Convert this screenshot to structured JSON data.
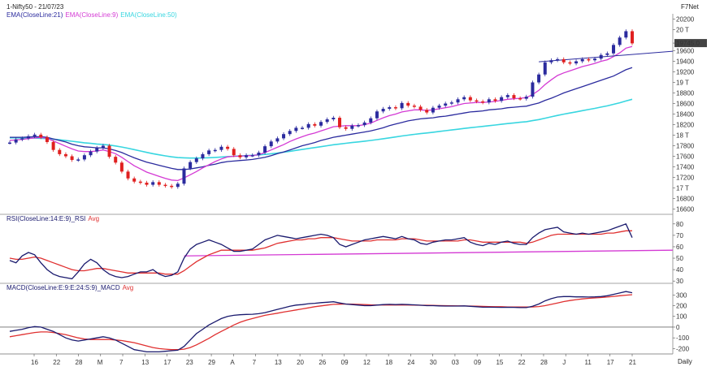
{
  "header": {
    "instrument": "1-Nifty50 - 21/07/23",
    "provider": "F7Net",
    "price_legend": [
      {
        "label": "EMA(CloseLine:21)",
        "color": "#2b2b9e"
      },
      {
        "label": "EMA(CloseLine:9)",
        "color": "#d43ad4"
      },
      {
        "label": "EMA(CloseLine:50)",
        "color": "#38d6e0"
      }
    ],
    "rsi_legend": [
      {
        "label": "RSI(CloseLine:14:E:9)_RSI",
        "color": "#1a1a6e"
      },
      {
        "label": "Avg",
        "color": "#e03030"
      }
    ],
    "macd_legend": [
      {
        "label": "MACD(CloseLine:E:9:E:24:S:9)_MACD",
        "color": "#1a1a6e"
      },
      {
        "label": "Avg",
        "color": "#e03030"
      }
    ],
    "period": "Daily",
    "last_price": "19745.0"
  },
  "colors": {
    "up": "#2b2b9e",
    "down": "#e02020",
    "ema21": "#2b2b9e",
    "ema9": "#d43ad4",
    "ema50": "#38d6e0",
    "rsi": "#1a1a6e",
    "avg": "#e03030",
    "trend": "#d43ad4"
  },
  "chart_data": [
    {
      "type": "candlestick",
      "title": "1-Nifty50 - 21/07/23",
      "ylim": [
        16500,
        20300
      ],
      "y_ticks": [
        "20200",
        "20 T",
        "19745.0",
        "19600",
        "19400",
        "19200",
        "19 T",
        "18800",
        "18600",
        "18400",
        "18200",
        "18 T",
        "17800",
        "17600",
        "17400",
        "17200",
        "17 T",
        "16800",
        "16600"
      ],
      "y_tick_values": [
        20200,
        20000,
        19745,
        19600,
        19400,
        19200,
        19000,
        18800,
        18600,
        18400,
        18200,
        18000,
        17800,
        17600,
        17400,
        17200,
        17000,
        16800,
        16600
      ],
      "x_tick_labels": [
        "16",
        "22",
        "28",
        "M",
        "7",
        "13",
        "17",
        "23",
        "29",
        "A",
        "7",
        "13",
        "20",
        "26",
        "09",
        "12",
        "18",
        "24",
        "30",
        "03",
        "09",
        "15",
        "22",
        "28",
        "J",
        "11",
        "17",
        "21"
      ],
      "close": [
        17860,
        17920,
        17940,
        17980,
        18010,
        17960,
        17870,
        17720,
        17640,
        17600,
        17530,
        17540,
        17620,
        17690,
        17760,
        17800,
        17590,
        17480,
        17310,
        17180,
        17120,
        17100,
        17060,
        17110,
        17060,
        17040,
        17020,
        17080,
        17370,
        17490,
        17560,
        17640,
        17710,
        17720,
        17780,
        17740,
        17620,
        17580,
        17620,
        17620,
        17670,
        17790,
        17880,
        17940,
        18020,
        18080,
        18140,
        18140,
        18210,
        18180,
        18250,
        18300,
        18330,
        18150,
        18120,
        18180,
        18190,
        18240,
        18320,
        18450,
        18500,
        18530,
        18510,
        18610,
        18560,
        18540,
        18480,
        18430,
        18520,
        18560,
        18600,
        18620,
        18680,
        18720,
        18660,
        18640,
        18620,
        18680,
        18650,
        18720,
        18760,
        18700,
        18690,
        18730,
        19000,
        19150,
        19380,
        19420,
        19440,
        19380,
        19360,
        19400,
        19440,
        19420,
        19450,
        19520,
        19550,
        19710,
        19850,
        19970,
        19740
      ],
      "ema9": [
        17900,
        17910,
        17920,
        17935,
        17950,
        17955,
        17940,
        17890,
        17840,
        17790,
        17740,
        17700,
        17690,
        17690,
        17700,
        17720,
        17690,
        17650,
        17580,
        17500,
        17420,
        17360,
        17300,
        17260,
        17220,
        17180,
        17150,
        17140,
        17190,
        17250,
        17310,
        17380,
        17440,
        17500,
        17550,
        17590,
        17600,
        17600,
        17610,
        17615,
        17630,
        17670,
        17720,
        17770,
        17820,
        17880,
        17930,
        17970,
        18010,
        18040,
        18080,
        18120,
        18160,
        18170,
        18180,
        18180,
        18180,
        18200,
        18230,
        18280,
        18330,
        18370,
        18400,
        18440,
        18460,
        18480,
        18480,
        18470,
        18480,
        18500,
        18520,
        18540,
        18570,
        18600,
        18610,
        18620,
        18620,
        18630,
        18640,
        18660,
        18680,
        18690,
        18700,
        18710,
        18770,
        18850,
        18960,
        19050,
        19130,
        19180,
        19220,
        19260,
        19300,
        19330,
        19360,
        19400,
        19430,
        19490,
        19560,
        19650,
        19680
      ],
      "ema21": [
        17960,
        17960,
        17960,
        17965,
        17970,
        17970,
        17960,
        17930,
        17900,
        17870,
        17830,
        17800,
        17780,
        17770,
        17760,
        17760,
        17740,
        17710,
        17670,
        17620,
        17570,
        17530,
        17490,
        17460,
        17430,
        17400,
        17370,
        17350,
        17350,
        17360,
        17380,
        17400,
        17430,
        17450,
        17480,
        17500,
        17510,
        17520,
        17530,
        17540,
        17560,
        17580,
        17610,
        17650,
        17680,
        17720,
        17760,
        17800,
        17830,
        17860,
        17900,
        17930,
        17960,
        17980,
        18000,
        18020,
        18040,
        18060,
        18080,
        18110,
        18140,
        18180,
        18210,
        18240,
        18270,
        18290,
        18310,
        18320,
        18330,
        18350,
        18360,
        18380,
        18400,
        18420,
        18440,
        18450,
        18460,
        18480,
        18490,
        18500,
        18520,
        18530,
        18540,
        18550,
        18580,
        18610,
        18660,
        18700,
        18750,
        18800,
        18840,
        18880,
        18920,
        18960,
        19000,
        19040,
        19080,
        19120,
        19180,
        19240,
        19280
      ],
      "ema50": [
        17950,
        17950,
        17948,
        17946,
        17944,
        17940,
        17935,
        17925,
        17912,
        17898,
        17884,
        17870,
        17856,
        17844,
        17833,
        17824,
        17812,
        17796,
        17776,
        17752,
        17726,
        17700,
        17674,
        17650,
        17628,
        17608,
        17590,
        17576,
        17570,
        17566,
        17566,
        17568,
        17572,
        17578,
        17586,
        17594,
        17600,
        17606,
        17612,
        17618,
        17626,
        17636,
        17648,
        17662,
        17678,
        17694,
        17712,
        17730,
        17748,
        17764,
        17782,
        17800,
        17818,
        17832,
        17846,
        17860,
        17872,
        17886,
        17900,
        17916,
        17932,
        17950,
        17966,
        17984,
        18000,
        18016,
        18030,
        18042,
        18056,
        18070,
        18084,
        18098,
        18112,
        18128,
        18142,
        18154,
        18166,
        18180,
        18192,
        18206,
        18220,
        18232,
        18244,
        18256,
        18276,
        18296,
        18322,
        18348,
        18374,
        18398,
        18420,
        18442,
        18464,
        18486,
        18508,
        18532,
        18556,
        18584,
        18614,
        18648,
        18680
      ],
      "trendline": {
        "start": 19390,
        "end": 19590
      }
    },
    {
      "type": "line",
      "title": "RSI(CloseLine:14:E:9)_RSI",
      "ylim": [
        28,
        82
      ],
      "y_ticks": [
        "80",
        "70",
        "60",
        "50",
        "40",
        "30"
      ],
      "y_tick_values": [
        80,
        70,
        60,
        50,
        40,
        30
      ],
      "series": [
        {
          "name": "RSI(CloseLine:14:E:9)_RSI",
          "values": [
            48,
            46,
            52,
            55,
            53,
            46,
            40,
            36,
            34,
            33,
            32,
            38,
            45,
            49,
            46,
            40,
            36,
            34,
            33,
            34,
            36,
            38,
            38,
            40,
            36,
            34,
            35,
            38,
            50,
            58,
            62,
            64,
            66,
            64,
            62,
            59,
            56,
            56,
            57,
            58,
            62,
            66,
            68,
            70,
            69,
            68,
            67,
            68,
            69,
            70,
            71,
            70,
            68,
            62,
            60,
            62,
            64,
            66,
            67,
            68,
            69,
            68,
            67,
            69,
            67,
            66,
            63,
            62,
            64,
            65,
            66,
            66,
            67,
            68,
            64,
            62,
            61,
            63,
            62,
            64,
            65,
            63,
            62,
            62,
            68,
            72,
            75,
            76,
            77,
            73,
            72,
            71,
            72,
            71,
            72,
            73,
            74,
            76,
            78,
            80,
            68
          ]
        },
        {
          "name": "Avg",
          "values": [
            50,
            49,
            49,
            50,
            51,
            50,
            48,
            46,
            44,
            42,
            40,
            39,
            39,
            40,
            41,
            41,
            40,
            39,
            38,
            37,
            37,
            37,
            37,
            37,
            37,
            36,
            36,
            36,
            39,
            43,
            47,
            50,
            53,
            55,
            57,
            57,
            57,
            57,
            57,
            57,
            58,
            59,
            61,
            63,
            64,
            65,
            66,
            66,
            67,
            67,
            68,
            68,
            68,
            67,
            66,
            65,
            65,
            65,
            65,
            66,
            66,
            66,
            66,
            67,
            67,
            67,
            66,
            65,
            65,
            65,
            65,
            65,
            65,
            66,
            66,
            65,
            64,
            64,
            64,
            64,
            64,
            64,
            64,
            63,
            64,
            66,
            68,
            70,
            71,
            71,
            71,
            71,
            71,
            71,
            71,
            71,
            72,
            72,
            73,
            74,
            74
          ]
        }
      ],
      "trendline": {
        "start": 52,
        "end": 57
      }
    },
    {
      "type": "line",
      "title": "MACD(CloseLine:E:9:E:24:S:9)_MACD",
      "ylim": [
        -250,
        340
      ],
      "y_ticks": [
        "300",
        "200",
        "100",
        "0",
        "-100",
        "-200"
      ],
      "y_tick_values": [
        300,
        200,
        100,
        0,
        -100,
        -200
      ],
      "series": [
        {
          "name": "MACD(CloseLine:E:9:E:24:S:9)_MACD",
          "values": [
            -40,
            -30,
            -20,
            -5,
            5,
            0,
            -20,
            -40,
            -70,
            -100,
            -120,
            -130,
            -120,
            -110,
            -100,
            -90,
            -100,
            -120,
            -150,
            -180,
            -210,
            -220,
            -230,
            -230,
            -230,
            -225,
            -220,
            -215,
            -180,
            -120,
            -60,
            -20,
            20,
            50,
            80,
            100,
            110,
            115,
            118,
            120,
            125,
            135,
            150,
            165,
            180,
            195,
            205,
            210,
            218,
            222,
            228,
            232,
            236,
            225,
            215,
            210,
            205,
            200,
            200,
            205,
            210,
            212,
            210,
            212,
            210,
            208,
            204,
            200,
            200,
            198,
            196,
            196,
            196,
            198,
            194,
            190,
            186,
            186,
            185,
            184,
            185,
            184,
            182,
            182,
            195,
            215,
            245,
            265,
            280,
            285,
            285,
            282,
            282,
            280,
            282,
            285,
            292,
            305,
            318,
            332,
            320
          ]
        },
        {
          "name": "Avg",
          "values": [
            -90,
            -80,
            -70,
            -60,
            -50,
            -45,
            -45,
            -50,
            -60,
            -70,
            -85,
            -100,
            -110,
            -115,
            -115,
            -115,
            -115,
            -120,
            -125,
            -135,
            -145,
            -160,
            -175,
            -190,
            -200,
            -205,
            -210,
            -210,
            -205,
            -190,
            -165,
            -135,
            -105,
            -70,
            -40,
            -10,
            20,
            45,
            65,
            80,
            95,
            110,
            120,
            130,
            140,
            150,
            160,
            170,
            180,
            190,
            198,
            205,
            212,
            214,
            215,
            214,
            212,
            210,
            208,
            207,
            206,
            206,
            206,
            206,
            206,
            205,
            204,
            204,
            202,
            201,
            200,
            199,
            198,
            197,
            196,
            195,
            193,
            192,
            190,
            190,
            188,
            188,
            188,
            187,
            188,
            192,
            200,
            212,
            225,
            238,
            248,
            256,
            263,
            268,
            272,
            276,
            280,
            286,
            292,
            298,
            302
          ]
        }
      ],
      "zero_line": 0
    }
  ]
}
